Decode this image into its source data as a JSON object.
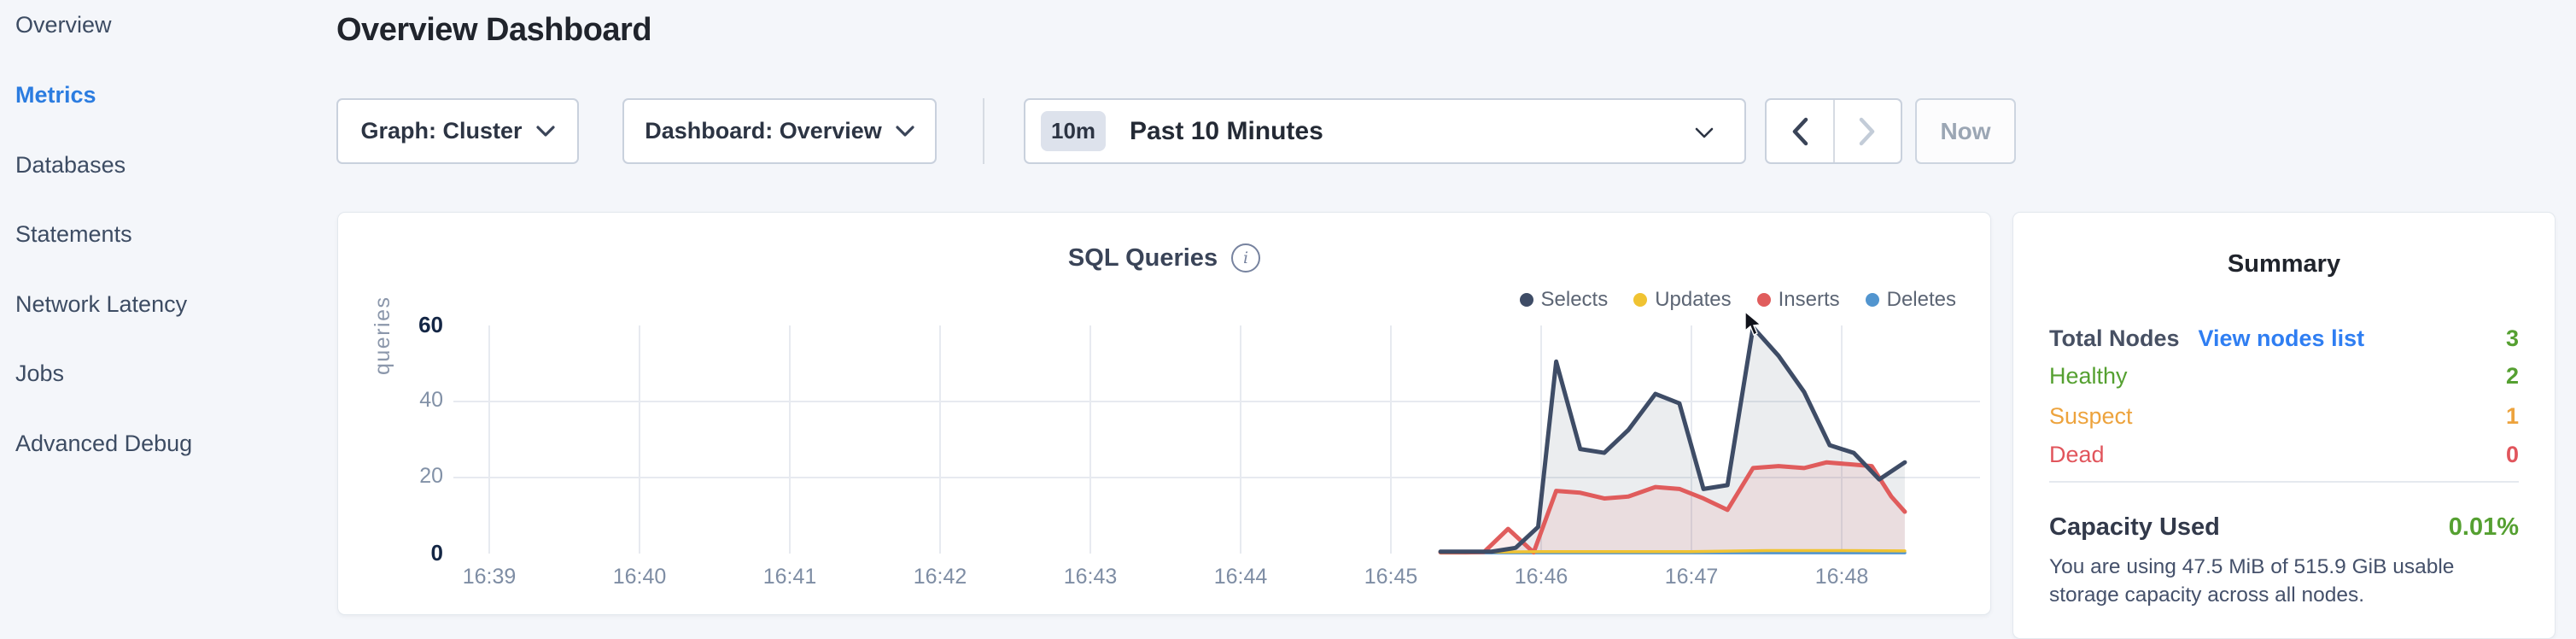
{
  "sidebar": {
    "items": [
      {
        "label": "Overview",
        "active": false
      },
      {
        "label": "Metrics",
        "active": true
      },
      {
        "label": "Databases",
        "active": false
      },
      {
        "label": "Statements",
        "active": false
      },
      {
        "label": "Network Latency",
        "active": false
      },
      {
        "label": "Jobs",
        "active": false
      },
      {
        "label": "Advanced Debug",
        "active": false
      }
    ]
  },
  "header": {
    "title": "Overview Dashboard"
  },
  "toolbar": {
    "graph_dropdown_label": "Graph: Cluster",
    "dashboard_dropdown_label": "Dashboard: Overview",
    "time_badge": "10m",
    "time_label": "Past 10 Minutes",
    "now_label": "Now"
  },
  "chart": {
    "title": "SQL Queries",
    "info_icon_glyph": "i",
    "ylabel": "queries",
    "legend": [
      {
        "label": "Selects"
      },
      {
        "label": "Updates"
      },
      {
        "label": "Inserts"
      },
      {
        "label": "Deletes"
      }
    ]
  },
  "chart_data": {
    "type": "area",
    "title": "SQL Queries",
    "ylabel": "queries",
    "ylim": [
      0,
      60
    ],
    "yticks": [
      0,
      20,
      40,
      60
    ],
    "grid": true,
    "legend_position": "top-right",
    "x_unit": "minutes after 16:39",
    "xticklabels": [
      "16:39",
      "16:40",
      "16:41",
      "16:42",
      "16:43",
      "16:44",
      "16:45",
      "16:46",
      "16:47",
      "16:48"
    ],
    "series": [
      {
        "name": "Selects",
        "color": "#3e4c66",
        "fill": "rgba(62,76,102,0.10)",
        "width": 5,
        "x": [
          6.33,
          6.5,
          6.67,
          6.83,
          6.98,
          7.1,
          7.26,
          7.42,
          7.58,
          7.76,
          7.92,
          8.08,
          8.24,
          8.41,
          8.58,
          8.75,
          8.92,
          9.08,
          9.25,
          9.42
        ],
        "values": [
          0.5,
          0.5,
          0.5,
          1.5,
          7,
          50.5,
          27.5,
          26.5,
          32.5,
          42,
          39.5,
          17,
          18,
          59.5,
          52,
          42.5,
          28.5,
          26.5,
          19.5,
          24
        ]
      },
      {
        "name": "Updates",
        "color": "#f0c332",
        "fill": null,
        "width": 3.5,
        "x": [
          6.33,
          7.0,
          8.0,
          8.5,
          9.0,
          9.42
        ],
        "values": [
          0.3,
          0.5,
          0.5,
          0.8,
          0.8,
          0.7
        ]
      },
      {
        "name": "Inserts",
        "color": "#e05c5c",
        "fill": "rgba(224,92,92,0.10)",
        "width": 5,
        "x": [
          6.33,
          6.5,
          6.62,
          6.78,
          6.95,
          7.1,
          7.26,
          7.42,
          7.58,
          7.76,
          7.92,
          8.08,
          8.24,
          8.41,
          8.58,
          8.75,
          8.9,
          9.05,
          9.2,
          9.33,
          9.42
        ],
        "values": [
          0.3,
          0.3,
          0.4,
          6.5,
          0.3,
          16.5,
          16,
          14.5,
          15,
          17.5,
          17,
          14.5,
          11.5,
          22.5,
          23,
          22.5,
          24,
          23.5,
          23,
          15,
          11
        ]
      },
      {
        "name": "Deletes",
        "color": "#5295cf",
        "fill": null,
        "width": 3.5,
        "x": [
          6.33,
          9.42
        ],
        "values": [
          0.2,
          0.2
        ]
      }
    ]
  },
  "summary": {
    "title": "Summary",
    "rows": [
      {
        "label": "Total Nodes",
        "link": "View nodes list",
        "value": "3"
      },
      {
        "label": "Healthy",
        "value": "2"
      },
      {
        "label": "Suspect",
        "value": "1"
      },
      {
        "label": "Dead",
        "value": "0"
      }
    ],
    "capacity_label": "Capacity Used",
    "capacity_value": "0.01%",
    "capacity_description": "You are using 47.5 MiB of 515.9 GiB usable storage capacity across all nodes."
  }
}
